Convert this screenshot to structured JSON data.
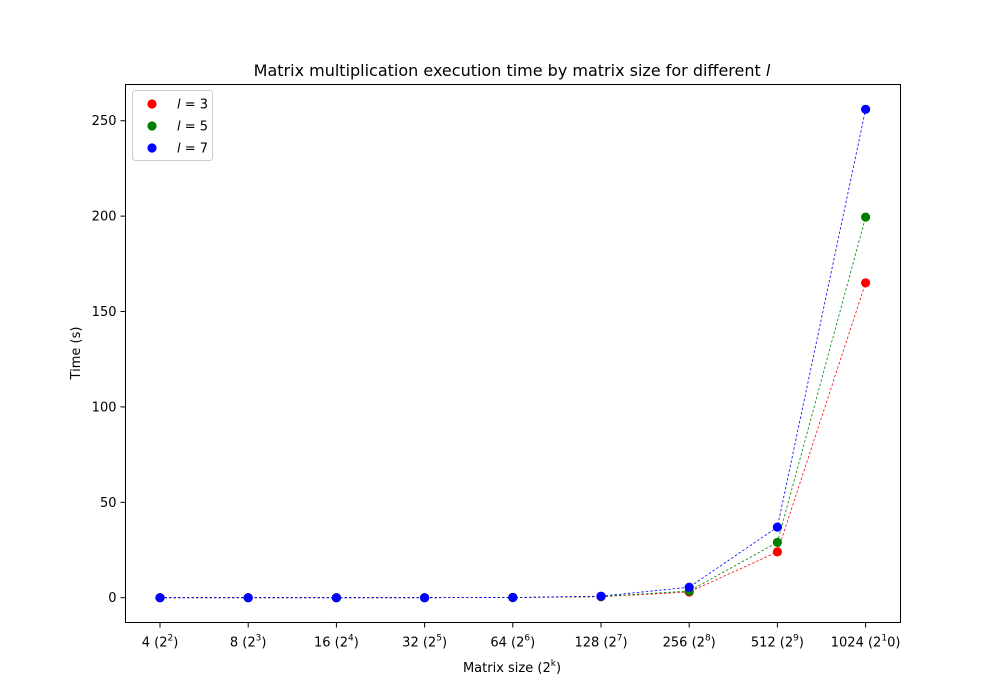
{
  "chart_data": {
    "type": "scatter",
    "title": "Matrix multiplication execution time by matrix size for different l",
    "title_prefix": "Matrix multiplication execution time by matrix size for different",
    "title_var": "l",
    "xlabel_prefix": "Matrix size (2",
    "xlabel_sup": "k",
    "xlabel_suffix": ")",
    "ylabel": "Time (s)",
    "categories": [
      {
        "main": "4 (2",
        "sup": "2",
        "end": ")"
      },
      {
        "main": "8 (2",
        "sup": "3",
        "end": ")"
      },
      {
        "main": "16 (2",
        "sup": "4",
        "end": ")"
      },
      {
        "main": "32 (2",
        "sup": "5",
        "end": ")"
      },
      {
        "main": "64 (2",
        "sup": "6",
        "end": ")"
      },
      {
        "main": "128 (2",
        "sup": "7",
        "end": ")"
      },
      {
        "main": "256 (2",
        "sup": "8",
        "end": ")"
      },
      {
        "main": "512 (2",
        "sup": "9",
        "end": ")"
      },
      {
        "main": "1024 (2",
        "sup": "1",
        "end": "0)"
      }
    ],
    "yticks": [
      0,
      50,
      100,
      150,
      200,
      250
    ],
    "ylim": [
      -13,
      269
    ],
    "legend_position": "upper-left",
    "series": [
      {
        "name": "l = 3",
        "var": "l",
        "value": "3",
        "color": "#ff0000",
        "values": [
          0,
          0,
          0,
          0,
          0.1,
          0.5,
          3,
          24,
          165
        ]
      },
      {
        "name": "l = 5",
        "var": "l",
        "value": "5",
        "color": "#008000",
        "values": [
          0,
          0,
          0,
          0,
          0.1,
          0.6,
          3.5,
          29,
          199.5
        ]
      },
      {
        "name": "l = 7",
        "var": "l",
        "value": "7",
        "color": "#0000ff",
        "values": [
          0,
          0,
          0,
          0,
          0.1,
          0.8,
          5.5,
          37,
          256
        ]
      }
    ]
  }
}
